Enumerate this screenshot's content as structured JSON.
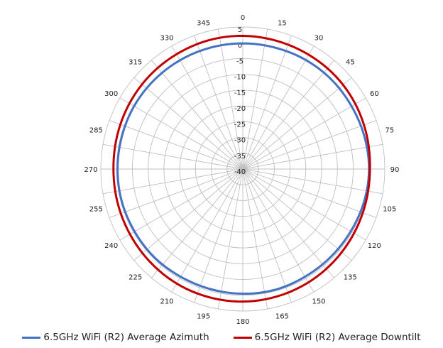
{
  "colors": {
    "series_azimuth": "#4472C4",
    "series_downtilt": "#C00000",
    "grid": "#BFBFBF",
    "text": "#222222"
  },
  "chart_data": {
    "type": "polar-line",
    "title": "",
    "angle_ticks": [
      0,
      15,
      30,
      45,
      60,
      75,
      90,
      105,
      120,
      135,
      150,
      165,
      180,
      195,
      210,
      225,
      240,
      255,
      270,
      285,
      300,
      315,
      330,
      345
    ],
    "angle_direction": "clockwise",
    "angle_zero": "top",
    "radial_ticks": [
      5,
      0,
      -5,
      -10,
      -15,
      -20,
      -25,
      -30,
      -35,
      -40
    ],
    "radial_range": [
      -40,
      5
    ],
    "grid": true,
    "legend_position": "bottom",
    "series": [
      {
        "name": "6.5GHz WiFi (R2) Average Azimuth",
        "color": "#4472C4",
        "angles": [
          0,
          15,
          30,
          45,
          60,
          75,
          90,
          105,
          120,
          135,
          150,
          165,
          180,
          195,
          210,
          225,
          240,
          255,
          270,
          285,
          300,
          315,
          330,
          345
        ],
        "values": [
          -0.2,
          -0.2,
          -0.1,
          -0.1,
          -0.2,
          -0.1,
          0.0,
          -0.2,
          -0.5,
          -0.6,
          -0.6,
          -0.4,
          -0.5,
          -0.6,
          -0.6,
          -0.4,
          -0.4,
          -0.3,
          -0.3,
          -0.3,
          -0.2,
          -0.2,
          -0.2,
          -0.2
        ]
      },
      {
        "name": "6.5GHz WiFi (R2) Average Downtilt",
        "color": "#C00000",
        "angles": [
          0,
          15,
          30,
          45,
          60,
          75,
          90,
          105,
          120,
          135,
          150,
          165,
          180,
          195,
          210,
          225,
          240,
          255,
          270,
          285,
          300,
          315,
          330,
          345
        ],
        "values": [
          2.2,
          2.0,
          1.8,
          1.6,
          1.2,
          0.7,
          0.3,
          0.4,
          0.7,
          1.1,
          1.5,
          1.8,
          2.0,
          2.0,
          1.9,
          1.6,
          1.3,
          1.1,
          1.0,
          1.2,
          1.5,
          1.8,
          2.0,
          2.2
        ]
      }
    ]
  }
}
